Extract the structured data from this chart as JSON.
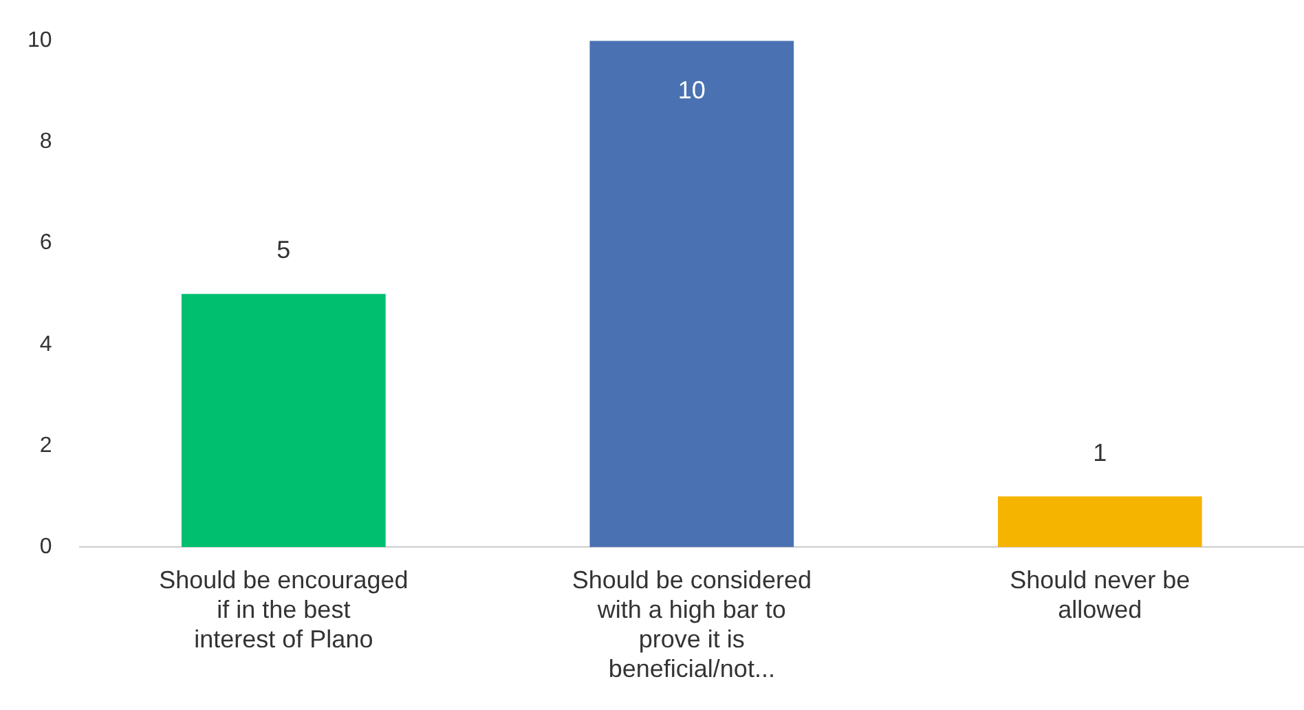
{
  "chart_data": {
    "type": "bar",
    "categories": [
      "Should be encouraged if in the best interest of Plano",
      "Should be considered with a high bar to prove it is beneficial/not...",
      "Should never be allowed"
    ],
    "values": [
      5,
      10,
      1
    ],
    "colors": [
      "#00bf6f",
      "#4a72b3",
      "#f5b400"
    ],
    "ylim": [
      0,
      10
    ],
    "yticks": [
      0,
      2,
      4,
      6,
      8,
      10
    ],
    "grid": false,
    "data_labels": true,
    "legend": false
  }
}
